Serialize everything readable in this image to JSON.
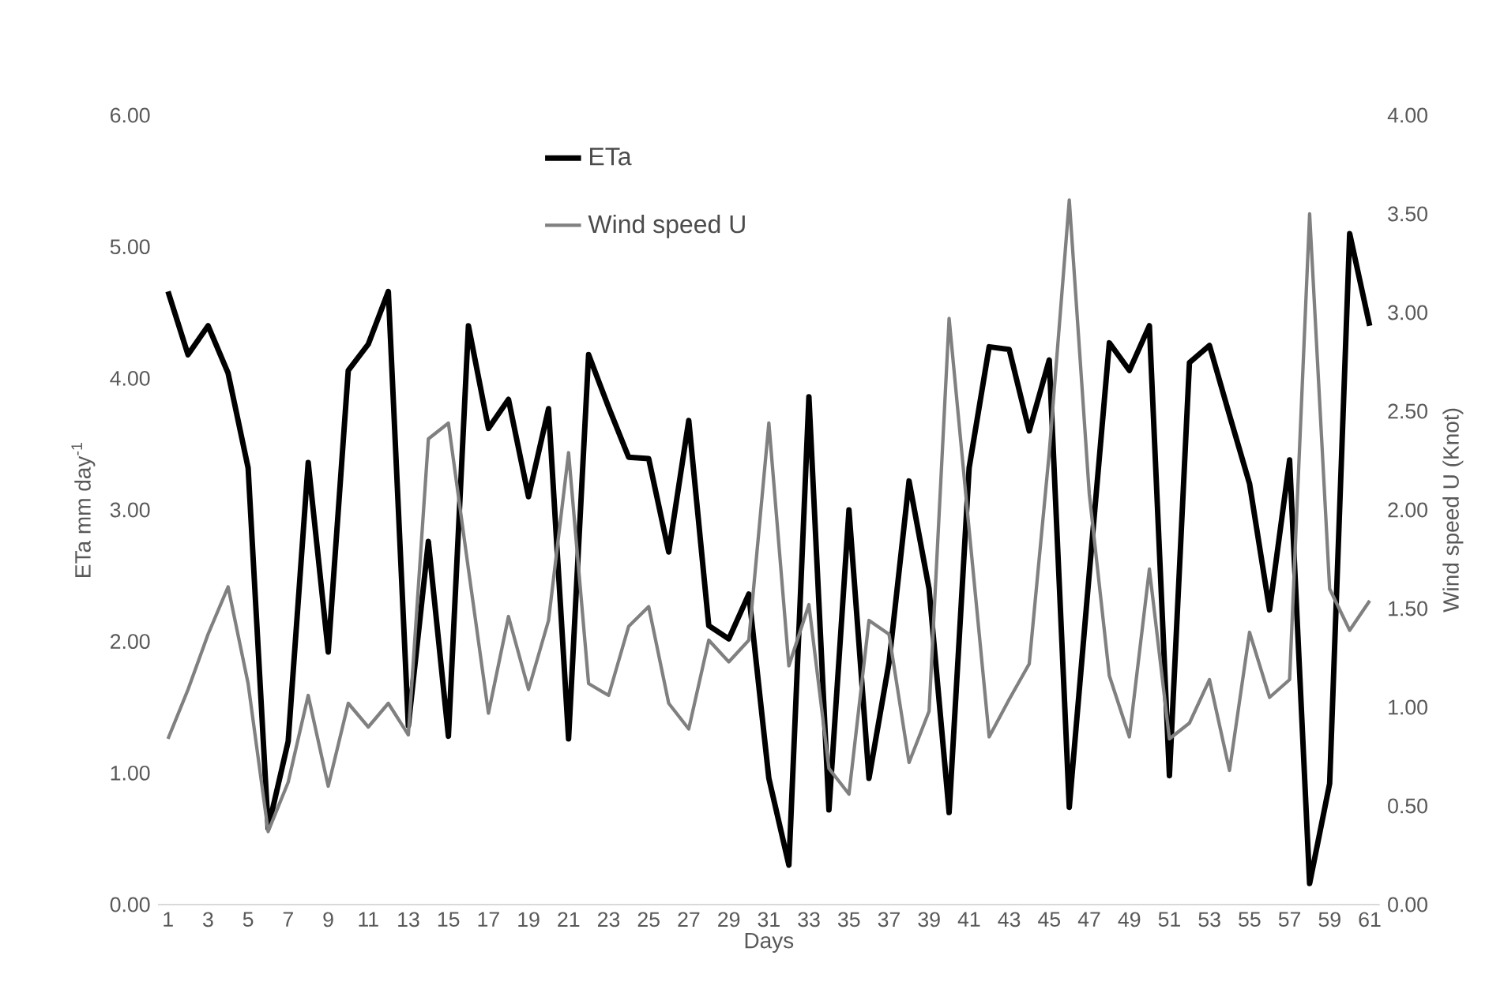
{
  "chart_data": {
    "type": "line",
    "xlabel": "Days",
    "ylabel": "ETa mm day$^{-1}$",
    "y2label": "Wind speed U (Knot)",
    "categories": [
      "1",
      null,
      "3",
      null,
      "5",
      null,
      "7",
      null,
      "9",
      null,
      "11",
      null,
      "13",
      null,
      "15",
      null,
      "17",
      null,
      "19",
      null,
      "21",
      null,
      "23",
      null,
      "25",
      null,
      "27",
      null,
      "29",
      null,
      "31",
      null,
      "33",
      null,
      "35",
      null,
      "37",
      null,
      "39",
      null,
      "41",
      null,
      "43",
      null,
      "45",
      null,
      "47",
      null,
      "49",
      null,
      "51",
      null,
      "53",
      null,
      "55",
      null,
      "57",
      null,
      "59",
      null,
      "61"
    ],
    "series": [
      {
        "name": "ETa",
        "color": "#000000",
        "values": [
          4.66,
          4.18,
          4.4,
          4.04,
          3.32,
          0.58,
          1.24,
          3.36,
          1.92,
          4.06,
          4.26,
          4.66,
          1.36,
          2.76,
          1.28,
          4.4,
          3.62,
          3.84,
          3.1,
          3.77,
          1.26,
          4.18,
          3.78,
          3.4,
          3.39,
          2.68,
          3.68,
          2.12,
          2.02,
          2.36,
          0.96,
          0.3,
          3.86,
          0.72,
          3.0,
          0.96,
          1.84,
          3.22,
          2.4,
          0.7,
          3.32,
          4.24,
          4.22,
          3.6,
          4.14,
          0.74,
          2.52,
          4.27,
          4.06,
          4.4,
          0.98,
          4.12,
          4.25,
          3.72,
          3.2,
          2.24,
          3.38,
          0.16,
          0.92,
          5.1,
          4.4
        ]
      },
      {
        "name": "Wind speed U",
        "color": "#808080",
        "axis": "y2",
        "values": [
          0.84,
          1.09,
          1.37,
          1.61,
          1.12,
          0.37,
          0.62,
          1.06,
          0.6,
          1.02,
          0.9,
          1.02,
          0.86,
          2.36,
          2.44,
          1.7,
          0.97,
          1.46,
          1.09,
          1.44,
          2.29,
          1.12,
          1.06,
          1.41,
          1.51,
          1.02,
          0.89,
          1.34,
          1.23,
          1.34,
          2.44,
          1.21,
          1.52,
          0.69,
          0.56,
          1.44,
          1.37,
          0.72,
          0.98,
          2.97,
          1.9,
          0.85,
          1.04,
          1.22,
          2.29,
          3.57,
          2.08,
          1.16,
          0.85,
          1.7,
          0.84,
          0.92,
          1.14,
          0.68,
          1.38,
          1.05,
          1.14,
          3.5,
          1.6,
          1.39,
          1.54
        ]
      }
    ],
    "ylim": [
      0,
      6
    ],
    "yticks": [
      {
        "value": 0,
        "label": "0.00"
      },
      {
        "value": 1,
        "label": "1.00"
      },
      {
        "value": 2,
        "label": "2.00"
      },
      {
        "value": 3,
        "label": "3.00"
      },
      {
        "value": 4,
        "label": "4.00"
      },
      {
        "value": 5,
        "label": "5.00"
      },
      {
        "value": 6,
        "label": "6.00"
      }
    ],
    "y2lim": [
      0,
      4
    ],
    "y2ticks": [
      {
        "value": 0,
        "label": "0.00"
      },
      {
        "value": 0.5,
        "label": "0.50"
      },
      {
        "value": 1,
        "label": "1.00"
      },
      {
        "value": 1.5,
        "label": "1.50"
      },
      {
        "value": 2,
        "label": "2.00"
      },
      {
        "value": 2.5,
        "label": "2.50"
      },
      {
        "value": 3,
        "label": "3.00"
      },
      {
        "value": 3.5,
        "label": "3.50"
      },
      {
        "value": 4,
        "label": "4.00"
      }
    ],
    "legend": "top",
    "grid": false,
    "marker": "none",
    "line_style": "solid"
  }
}
